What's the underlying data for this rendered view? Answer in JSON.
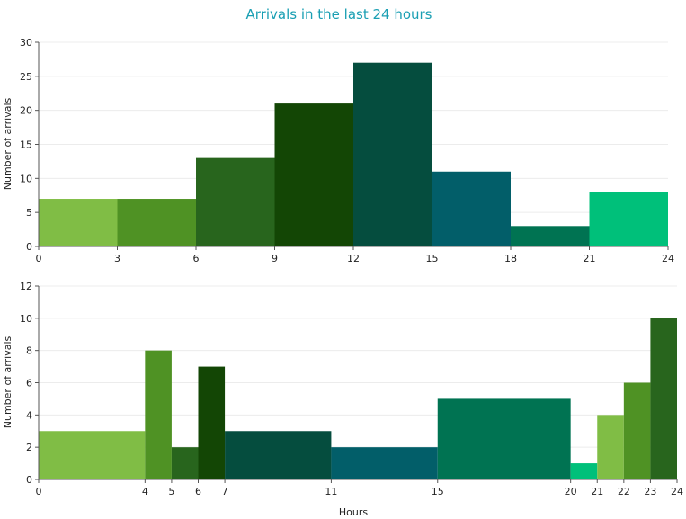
{
  "title": "Arrivals in the last 24 hours",
  "colors": {
    "title": "#1a9fb3",
    "grid": "#ececec",
    "axis": "#555555",
    "palette": [
      "#80bd45",
      "#4f9224",
      "#28651d",
      "#134605",
      "#054d3e",
      "#025e69",
      "#007352",
      "#00c07a"
    ]
  },
  "chart_data": [
    {
      "type": "bar",
      "title": "Arrivals in the last 24 hours",
      "xlabel": "",
      "ylabel": "Number of arrivals",
      "xlim": [
        0,
        24
      ],
      "ylim": [
        0,
        30
      ],
      "xticks": [
        0,
        3,
        6,
        9,
        12,
        15,
        18,
        21,
        24
      ],
      "yticks": [
        0,
        5,
        10,
        15,
        20,
        25,
        30
      ],
      "grid": true,
      "bins": [
        {
          "start": 0,
          "end": 3,
          "value": 7
        },
        {
          "start": 3,
          "end": 6,
          "value": 7
        },
        {
          "start": 6,
          "end": 9,
          "value": 13
        },
        {
          "start": 9,
          "end": 12,
          "value": 21
        },
        {
          "start": 12,
          "end": 15,
          "value": 27
        },
        {
          "start": 15,
          "end": 18,
          "value": 11
        },
        {
          "start": 18,
          "end": 21,
          "value": 3
        },
        {
          "start": 21,
          "end": 24,
          "value": 8
        }
      ]
    },
    {
      "type": "bar",
      "xlabel": "Hours",
      "ylabel": "Number of arrivals",
      "xlim": [
        0,
        24
      ],
      "ylim": [
        0,
        12
      ],
      "xticks": [
        0,
        4,
        5,
        6,
        7,
        11,
        15,
        20,
        21,
        22,
        23,
        24
      ],
      "yticks": [
        0,
        2,
        4,
        6,
        8,
        10,
        12
      ],
      "grid": true,
      "bins": [
        {
          "start": 0,
          "end": 4,
          "value": 3
        },
        {
          "start": 4,
          "end": 5,
          "value": 8
        },
        {
          "start": 5,
          "end": 6,
          "value": 2
        },
        {
          "start": 6,
          "end": 7,
          "value": 7
        },
        {
          "start": 7,
          "end": 11,
          "value": 3
        },
        {
          "start": 11,
          "end": 15,
          "value": 2
        },
        {
          "start": 15,
          "end": 20,
          "value": 5
        },
        {
          "start": 20,
          "end": 21,
          "value": 1
        },
        {
          "start": 21,
          "end": 22,
          "value": 4
        },
        {
          "start": 22,
          "end": 23,
          "value": 6
        },
        {
          "start": 23,
          "end": 24,
          "value": 10
        }
      ]
    }
  ]
}
